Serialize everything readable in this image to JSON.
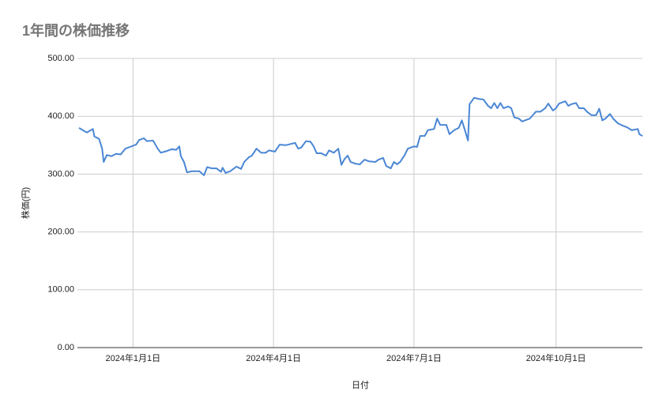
{
  "chart_data": {
    "type": "line",
    "title": "1年間の株価推移",
    "x_label": "日付",
    "y_label": "株価(円)",
    "color": "#4a86d4",
    "grid": true,
    "x": [
      "2023-11-27",
      "2023-12-02",
      "2023-12-06",
      "2023-12-07",
      "2023-12-10",
      "2023-12-12",
      "2023-12-13",
      "2023-12-15",
      "2023-12-18",
      "2023-12-21",
      "2023-12-24",
      "2023-12-27",
      "2023-12-30",
      "2024-01-03",
      "2024-01-05",
      "2024-01-08",
      "2024-01-10",
      "2024-01-14",
      "2024-01-17",
      "2024-01-19",
      "2024-01-23",
      "2024-01-26",
      "2024-01-29",
      "2024-01-31",
      "2024-02-01",
      "2024-02-03",
      "2024-02-05",
      "2024-02-08",
      "2024-02-13",
      "2024-02-16",
      "2024-02-18",
      "2024-02-21",
      "2024-02-24",
      "2024-02-27",
      "2024-02-28",
      "2024-03-01",
      "2024-03-04",
      "2024-03-08",
      "2024-03-11",
      "2024-03-13",
      "2024-03-16",
      "2024-03-18",
      "2024-03-21",
      "2024-03-24",
      "2024-03-27",
      "2024-03-29",
      "2024-04-02",
      "2024-04-05",
      "2024-04-09",
      "2024-04-12",
      "2024-04-15",
      "2024-04-17",
      "2024-04-19",
      "2024-04-22",
      "2024-04-25",
      "2024-04-27",
      "2024-04-29",
      "2024-05-02",
      "2024-05-05",
      "2024-05-07",
      "2024-05-10",
      "2024-05-13",
      "2024-05-15",
      "2024-05-17",
      "2024-05-19",
      "2024-05-21",
      "2024-05-24",
      "2024-05-27",
      "2024-05-30",
      "2024-06-02",
      "2024-06-06",
      "2024-06-08",
      "2024-06-11",
      "2024-06-13",
      "2024-06-16",
      "2024-06-18",
      "2024-06-20",
      "2024-06-22",
      "2024-06-25",
      "2024-06-27",
      "2024-07-01",
      "2024-07-03",
      "2024-07-05",
      "2024-07-08",
      "2024-07-10",
      "2024-07-14",
      "2024-07-16",
      "2024-07-18",
      "2024-07-22",
      "2024-07-24",
      "2024-07-27",
      "2024-07-30",
      "2024-08-01",
      "2024-08-03",
      "2024-08-05",
      "2024-08-06",
      "2024-08-09",
      "2024-08-12",
      "2024-08-15",
      "2024-08-18",
      "2024-08-20",
      "2024-08-22",
      "2024-08-24",
      "2024-08-26",
      "2024-08-28",
      "2024-08-31",
      "2024-09-02",
      "2024-09-04",
      "2024-09-07",
      "2024-09-09",
      "2024-09-11",
      "2024-09-14",
      "2024-09-16",
      "2024-09-18",
      "2024-09-21",
      "2024-09-24",
      "2024-09-26",
      "2024-09-29",
      "2024-10-01",
      "2024-10-03",
      "2024-10-07",
      "2024-10-09",
      "2024-10-11",
      "2024-10-14",
      "2024-10-16",
      "2024-10-19",
      "2024-10-21",
      "2024-10-24",
      "2024-10-27",
      "2024-10-29",
      "2024-10-31",
      "2024-11-02",
      "2024-11-05",
      "2024-11-07",
      "2024-11-10",
      "2024-11-13",
      "2024-11-16",
      "2024-11-19",
      "2024-11-23",
      "2024-11-24",
      "2024-11-26"
    ],
    "values": [
      380,
      372,
      378,
      365,
      361,
      344,
      321,
      333,
      331,
      335,
      334,
      344,
      347,
      351,
      359,
      362,
      357,
      358,
      344,
      337,
      340,
      343,
      342,
      348,
      331,
      321,
      303,
      305,
      305,
      298,
      312,
      310,
      310,
      304,
      311,
      302,
      305,
      313,
      309,
      321,
      329,
      332,
      344,
      337,
      337,
      341,
      339,
      351,
      350,
      352,
      354,
      344,
      346,
      357,
      356,
      348,
      336,
      336,
      332,
      341,
      337,
      344,
      316,
      326,
      332,
      321,
      318,
      317,
      325,
      322,
      321,
      325,
      328,
      314,
      310,
      321,
      317,
      321,
      333,
      344,
      348,
      347,
      366,
      366,
      376,
      378,
      396,
      385,
      385,
      369,
      376,
      380,
      393,
      376,
      358,
      421,
      432,
      430,
      429,
      418,
      414,
      423,
      414,
      423,
      414,
      417,
      414,
      398,
      396,
      391,
      393,
      396,
      402,
      408,
      408,
      414,
      422,
      410,
      414,
      422,
      426,
      418,
      421,
      423,
      414,
      414,
      408,
      402,
      402,
      413,
      393,
      396,
      404,
      396,
      388,
      384,
      381,
      376,
      378,
      369,
      366
    ],
    "xlim": [
      "2023-11-26",
      "2024-11-26"
    ],
    "xticks": [
      {
        "value": "2024-01-01",
        "label": "2024年1月1日"
      },
      {
        "value": "2024-04-01",
        "label": "2024年4月1日"
      },
      {
        "value": "2024-07-01",
        "label": "2024年7月1日"
      },
      {
        "value": "2024-10-01",
        "label": "2024年10月1日"
      }
    ],
    "ylim": [
      0,
      500
    ],
    "yticks": [
      {
        "value": 0,
        "label": "0.00"
      },
      {
        "value": 100,
        "label": "100.00"
      },
      {
        "value": 200,
        "label": "200.00"
      },
      {
        "value": 300,
        "label": "300.00"
      },
      {
        "value": 400,
        "label": "400.00"
      },
      {
        "value": 500,
        "label": "500.00"
      }
    ]
  }
}
